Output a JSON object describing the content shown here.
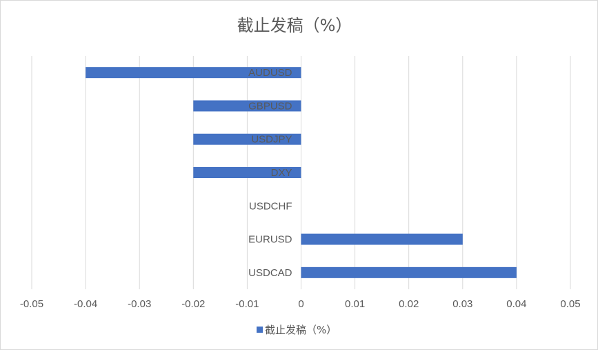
{
  "chart_data": {
    "type": "bar",
    "orientation": "horizontal",
    "title": "截止发稿（%）",
    "categories": [
      "AUDUSD",
      "GBPUSD",
      "USDJPY",
      "DXY",
      "USDCHF",
      "EURUSD",
      "USDCAD"
    ],
    "series": [
      {
        "name": "截止发稿（%）",
        "values": [
          -0.04,
          -0.02,
          -0.02,
          -0.02,
          0,
          0.03,
          0.04
        ],
        "color": "#4472C4"
      }
    ],
    "xlim": [
      -0.05,
      0.05
    ],
    "xticks": [
      "-0.05",
      "-0.04",
      "-0.03",
      "-0.02",
      "-0.01",
      "0",
      "0.01",
      "0.02",
      "0.03",
      "0.04",
      "0.05"
    ],
    "grid": true,
    "legend": "bottom",
    "xlabel": "",
    "ylabel": ""
  }
}
